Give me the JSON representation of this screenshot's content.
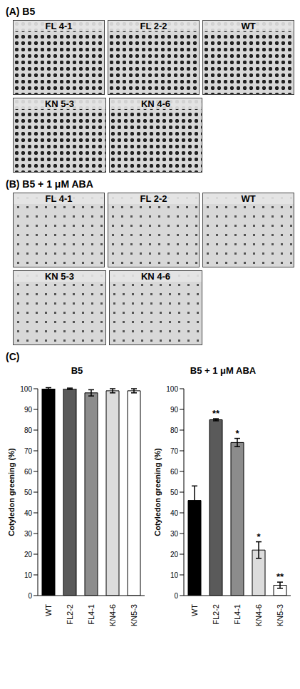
{
  "panels": [
    {
      "label": "(A) B5",
      "photos": [
        "FL 4-1",
        "FL 2-2",
        "WT",
        "KN 5-3",
        "KN 4-6"
      ]
    },
    {
      "label": "(B) B5 + 1 μM ABA",
      "photos": [
        "FL 4-1",
        "FL 2-2",
        "WT",
        "KN 5-3",
        "KN 4-6"
      ]
    }
  ],
  "figure_label": "(C)",
  "chart_data": [
    {
      "type": "bar",
      "title": "B5",
      "categories": [
        "WT",
        "FL2-2",
        "FL4-1",
        "KN4-6",
        "KN5-3"
      ],
      "values": [
        100,
        100,
        98,
        99,
        99
      ],
      "errors": [
        0.5,
        0.3,
        1.5,
        1,
        1
      ],
      "colors": [
        "#000000",
        "#5a5a5a",
        "#8c8c8c",
        "#dcdcdc",
        "#ffffff"
      ],
      "ylabel": "Cotyledon greening (%)",
      "ylim": [
        0,
        100
      ],
      "yticks": [
        0,
        10,
        20,
        30,
        40,
        50,
        60,
        70,
        80,
        90,
        100
      ]
    },
    {
      "type": "bar",
      "title": "B5 + 1 μM ABA",
      "categories": [
        "WT",
        "FL2-2",
        "FL4-1",
        "KN4-6",
        "KN5-3"
      ],
      "values": [
        46,
        85,
        74,
        22,
        5
      ],
      "errors": [
        7,
        0.5,
        2,
        4,
        1.5
      ],
      "significance": [
        null,
        "**",
        "*",
        "*",
        "**"
      ],
      "colors": [
        "#000000",
        "#5a5a5a",
        "#8c8c8c",
        "#dcdcdc",
        "#ffffff"
      ],
      "ylabel": "Cotyledon greening (%)",
      "ylim": [
        0,
        100
      ],
      "yticks": [
        0,
        10,
        20,
        30,
        40,
        50,
        60,
        70,
        80,
        90,
        100
      ]
    }
  ]
}
